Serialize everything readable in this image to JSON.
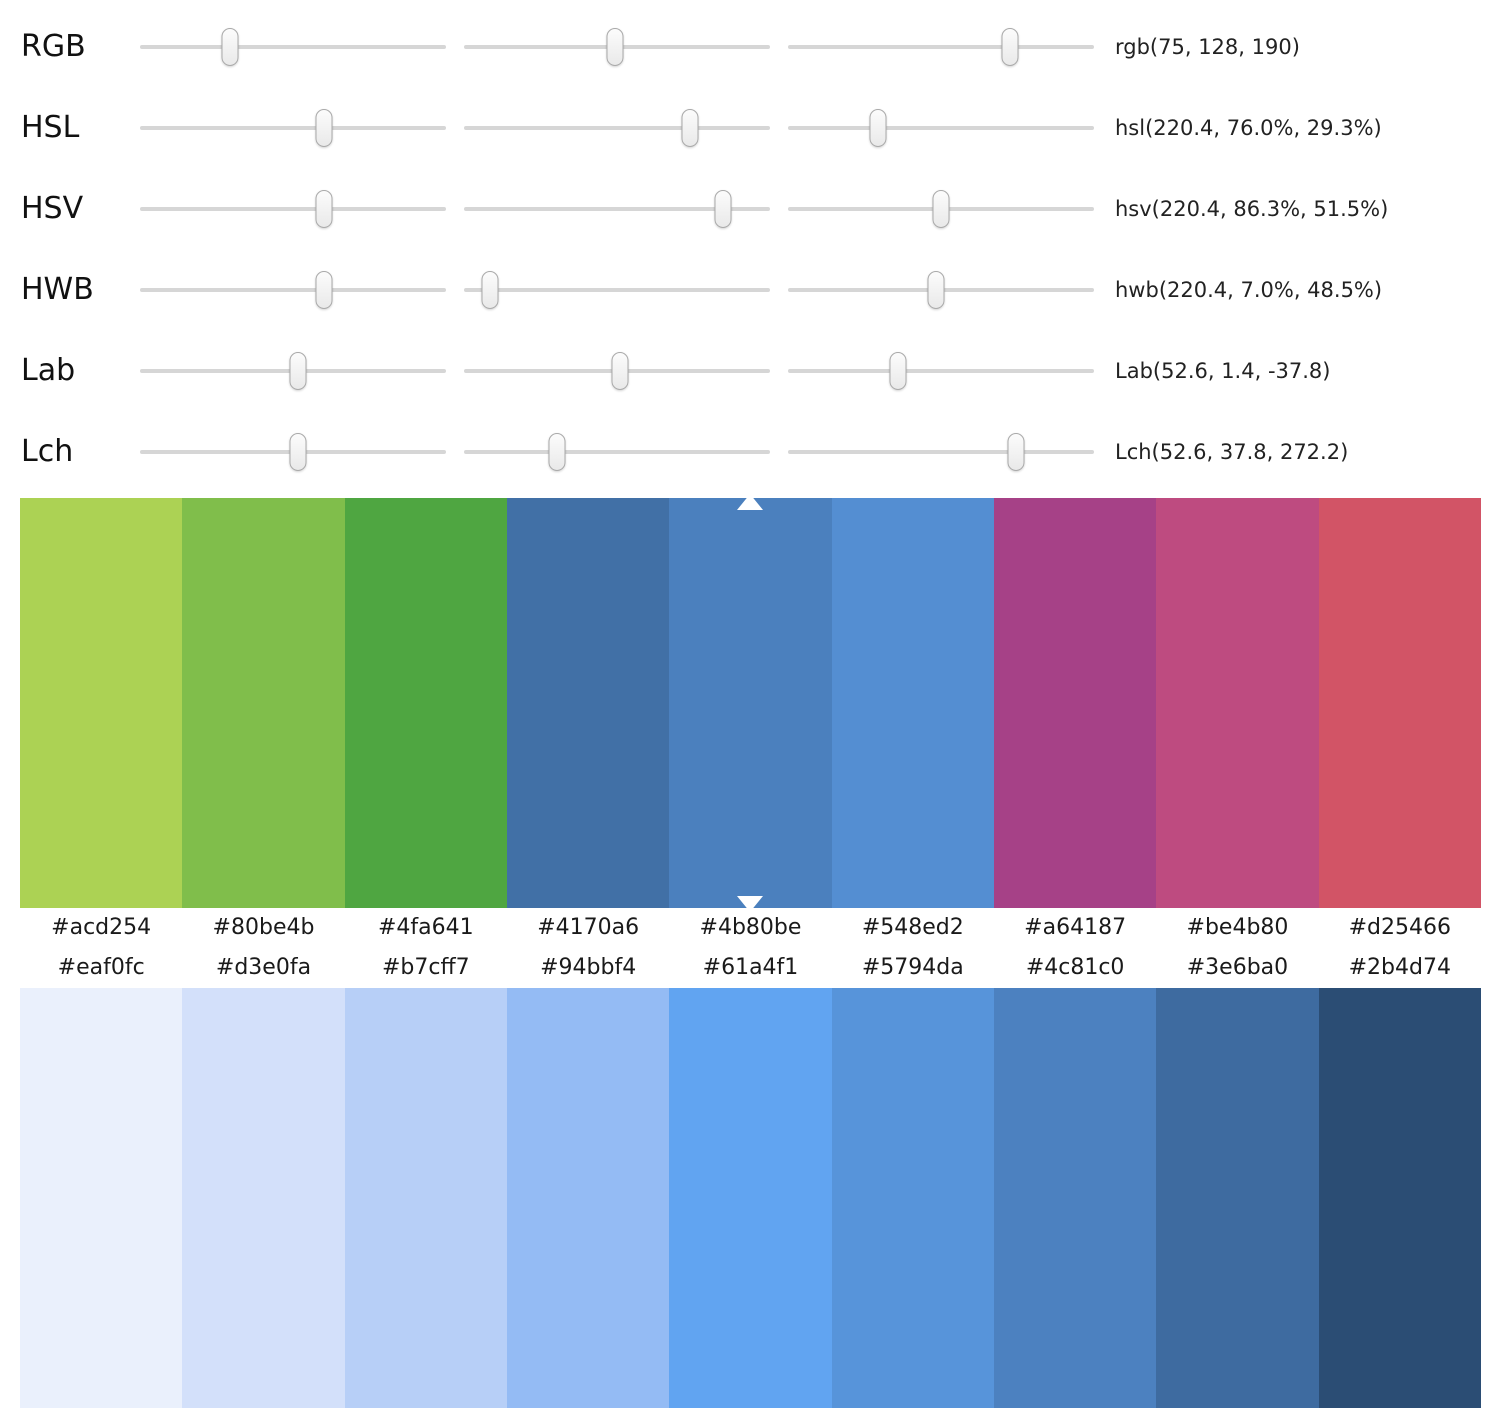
{
  "sliders": [
    {
      "id": "rgb",
      "label": "RGB",
      "value": "rgb(75, 128, 190)",
      "thumbs": [
        29.4,
        49.5,
        72.5
      ]
    },
    {
      "id": "hsl",
      "label": "HSL",
      "value": "hsl(220.4, 76.0%, 29.3%)",
      "thumbs": [
        60.0,
        74.0,
        29.5
      ]
    },
    {
      "id": "hsv",
      "label": "HSV",
      "value": "hsv(220.4, 86.3%, 51.5%)",
      "thumbs": [
        60.0,
        84.5,
        50.0
      ]
    },
    {
      "id": "hwb",
      "label": "HWB",
      "value": "hwb(220.4, 7.0%, 48.5%)",
      "thumbs": [
        60.0,
        8.5,
        48.5
      ]
    },
    {
      "id": "lab",
      "label": "Lab",
      "value": "Lab(52.6, 1.4, -37.8)",
      "thumbs": [
        51.5,
        51.0,
        36.0
      ]
    },
    {
      "id": "lch",
      "label": "Lch",
      "value": "Lch(52.6, 37.8, 272.2)",
      "thumbs": [
        51.5,
        30.5,
        74.5
      ]
    }
  ],
  "hue_palette": {
    "selected_index": 4,
    "swatches": [
      "#acd254",
      "#80be4b",
      "#4fa641",
      "#4170a6",
      "#4b80be",
      "#548ed2",
      "#a64187",
      "#be4b80",
      "#d25466"
    ]
  },
  "shade_palette": {
    "swatches": [
      "#eaf0fc",
      "#d3e0fa",
      "#b7cff7",
      "#94bbf4",
      "#61a4f1",
      "#5794da",
      "#4c81c0",
      "#3e6ba0",
      "#2b4d74"
    ]
  }
}
